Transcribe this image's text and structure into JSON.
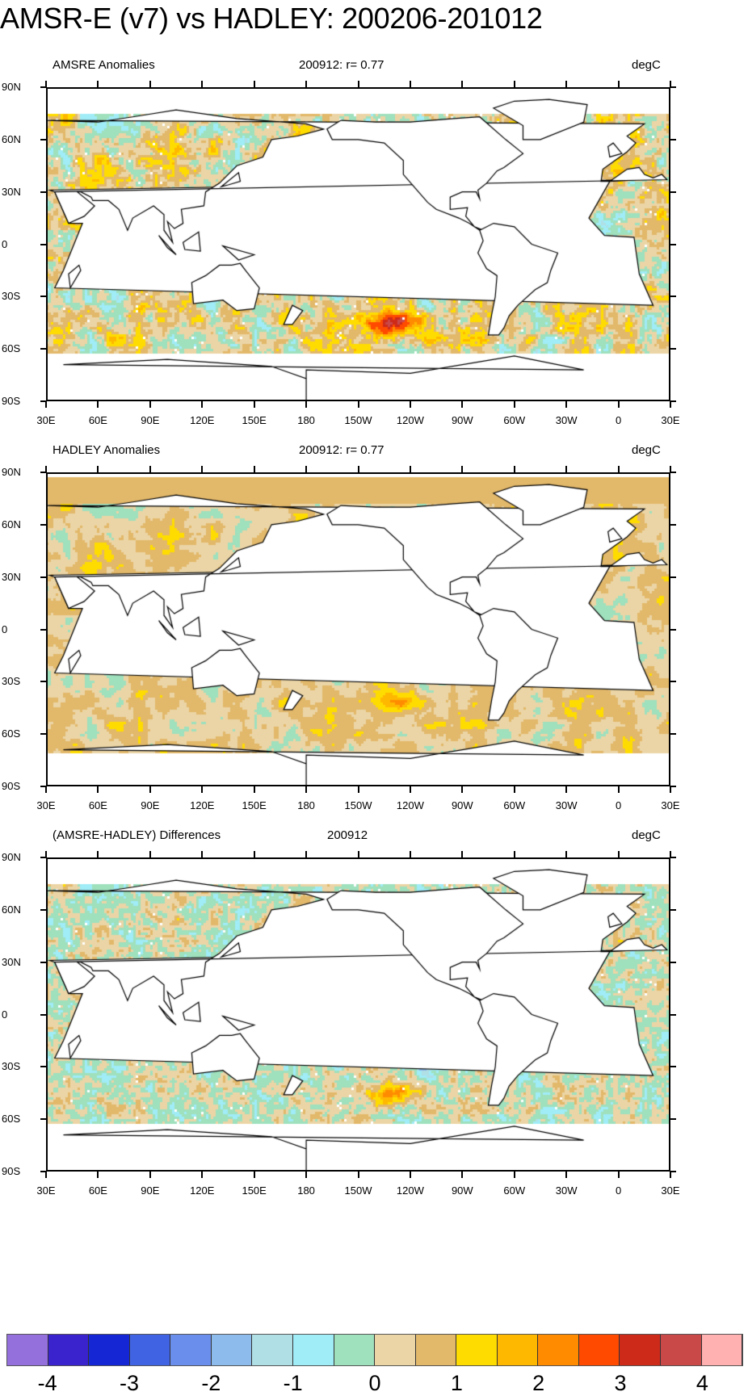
{
  "title": "AMSR-E (v7) vs HADLEY: 200206-201012",
  "panels": [
    {
      "title": "AMSRE Anomalies",
      "subtitle": "200912: r= 0.77",
      "units": "degC",
      "field": "amsre"
    },
    {
      "title": "HADLEY Anomalies",
      "subtitle": "200912: r= 0.77",
      "units": "degC",
      "field": "hadley"
    },
    {
      "title": "(AMSRE-HADLEY) Differences",
      "subtitle": "200912",
      "units": "degC",
      "field": "diff"
    }
  ],
  "lat_labels": [
    "90N",
    "60N",
    "30N",
    "0",
    "30S",
    "60S",
    "90S"
  ],
  "lon_labels": [
    "30E",
    "60E",
    "90E",
    "120E",
    "150E",
    "180",
    "150W",
    "120W",
    "90W",
    "60W",
    "30W",
    "0",
    "30E"
  ],
  "colorbar": {
    "labels": [
      "-4",
      "-3",
      "-2",
      "-1",
      "0",
      "1",
      "2",
      "3",
      "4"
    ],
    "boundaries": [
      -4,
      -3.5,
      -3,
      -2.5,
      -2,
      -1.5,
      -1,
      -0.5,
      0,
      0.5,
      1,
      1.5,
      2,
      2.5,
      3,
      3.5,
      4
    ],
    "colors": [
      "#9370db",
      "#3a22cc",
      "#1526d4",
      "#4063e4",
      "#6a8eeb",
      "#8dbbeb",
      "#b0dfe6",
      "#a0ecf7",
      "#9fe0bd",
      "#ebd5a6",
      "#e2b86a",
      "#ffdc00",
      "#ffb800",
      "#ff8c00",
      "#ff4a00",
      "#cd2a1a",
      "#c94848",
      "#ffb0b0"
    ]
  }
}
